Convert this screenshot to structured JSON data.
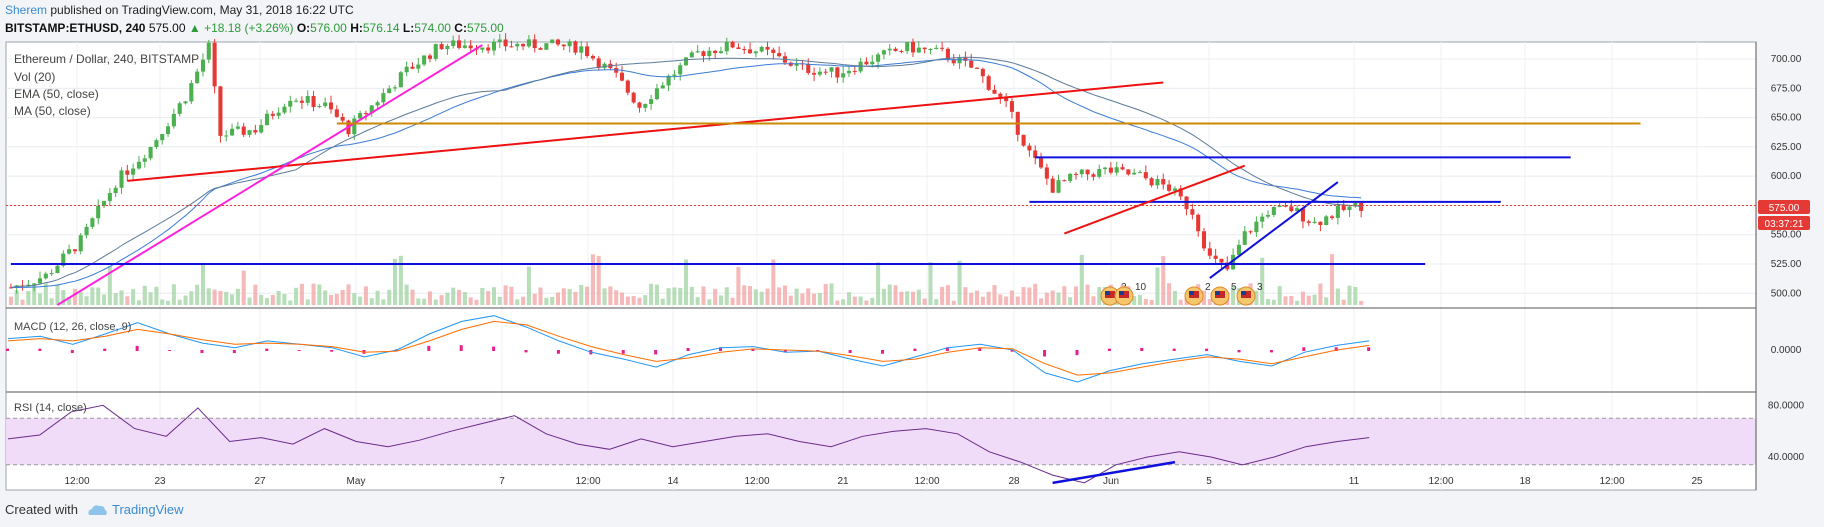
{
  "header": {
    "author": "Sherem",
    "published_text": "published on TradingView.com, May 31, 2018 16:22 UTC"
  },
  "ticker": {
    "symbol": "BITSTAMP:ETHUSD, 240",
    "last": "575.00",
    "change": "▲ +18.18 (+3.26%)",
    "open_label": "O:",
    "open": "576.00",
    "high_label": "H:",
    "high": "576.14",
    "low_label": "L:",
    "low": "574.00",
    "close_label": "C:",
    "close": "575.00"
  },
  "legend": {
    "main": "Ethereum / Dollar, 240, BITSTAMP",
    "vol": "Vol (20)",
    "ema": "EMA (50, close)",
    "ma": "MA (50, close)"
  },
  "panes": {
    "macd_label": "MACD (12, 26, close, 9)",
    "rsi_label": "RSI (14, close)"
  },
  "price_badges": {
    "price": "575.00",
    "timer": "03:37:21"
  },
  "event_markers": [
    {
      "label": "2"
    },
    {
      "label": "10"
    },
    {
      "label": "2"
    },
    {
      "label": "5"
    },
    {
      "label": "3"
    }
  ],
  "footer": {
    "created_with": "Created with",
    "brand": "TradingView"
  },
  "colors": {
    "up": "#4caf50",
    "down": "#e53935",
    "ema": "#3a7bd5",
    "ma": "#5b7a99",
    "trend_red": "#ee1111",
    "trend_magenta": "#ff22dd",
    "trend_orange": "#cc8800",
    "trend_blue": "#1010dd",
    "macd": "#2196f3",
    "signal": "#ff6d00",
    "hist": "#e91e8c",
    "rsi": "#6a2a8a",
    "rsi_band": "#f0dcf8"
  },
  "chart_data": [
    {
      "type": "candlestick",
      "title": "Ethereum / Dollar, 240, BITSTAMP",
      "y_ticks": [
        500,
        525,
        550,
        575,
        600,
        625,
        650,
        675,
        700
      ],
      "y_tick_labels": [
        "500.00",
        "525.00",
        "550.00",
        "575.00",
        "600.00",
        "625.00",
        "650.00",
        "675.00",
        "700.00"
      ],
      "ylim": [
        490,
        712
      ],
      "x_tick_labels": [
        "12:00",
        "23",
        "27",
        "May",
        "7",
        "12:00",
        "14",
        "12:00",
        "21",
        "12:00",
        "28",
        "Jun",
        "5",
        "11",
        "12:00",
        "18",
        "12:00",
        "25"
      ],
      "price_path": [
        [
          0,
          505
        ],
        [
          6,
          515
        ],
        [
          12,
          545
        ],
        [
          18,
          595
        ],
        [
          24,
          625
        ],
        [
          30,
          668
        ],
        [
          34,
          710
        ],
        [
          36,
          635
        ],
        [
          42,
          640
        ],
        [
          48,
          668
        ],
        [
          54,
          660
        ],
        [
          58,
          640
        ],
        [
          62,
          660
        ],
        [
          68,
          690
        ],
        [
          74,
          712
        ],
        [
          82,
          712
        ],
        [
          88,
          712
        ],
        [
          92,
          712
        ],
        [
          98,
          710
        ],
        [
          104,
          685
        ],
        [
          108,
          660
        ],
        [
          112,
          680
        ],
        [
          118,
          705
        ],
        [
          124,
          712
        ],
        [
          130,
          705
        ],
        [
          136,
          692
        ],
        [
          142,
          688
        ],
        [
          148,
          700
        ],
        [
          154,
          710
        ],
        [
          160,
          705
        ],
        [
          166,
          690
        ],
        [
          171,
          660
        ],
        [
          175,
          620
        ],
        [
          179,
          590
        ],
        [
          183,
          600
        ],
        [
          188,
          605
        ],
        [
          194,
          600
        ],
        [
          199,
          590
        ],
        [
          203,
          570
        ],
        [
          206,
          530
        ],
        [
          209,
          520
        ],
        [
          212,
          550
        ],
        [
          216,
          570
        ],
        [
          220,
          572
        ],
        [
          224,
          560
        ],
        [
          228,
          570
        ],
        [
          232,
          575
        ]
      ],
      "trendlines": [
        {
          "color": "red",
          "from": [
            20,
            596
          ],
          "to": [
            198,
            680
          ]
        },
        {
          "color": "magenta",
          "from": [
            8,
            490
          ],
          "to": [
            81,
            712
          ]
        },
        {
          "color": "orange",
          "from": [
            56,
            645
          ],
          "to": [
            280,
            645
          ]
        },
        {
          "color": "blue",
          "from": [
            0,
            525
          ],
          "to": [
            243,
            525
          ]
        },
        {
          "color": "blue",
          "from": [
            176,
            616
          ],
          "to": [
            268,
            616
          ]
        },
        {
          "color": "blue",
          "from": [
            175,
            578
          ],
          "to": [
            256,
            578
          ]
        },
        {
          "color": "red",
          "from": [
            181,
            551
          ],
          "to": [
            212,
            609
          ]
        },
        {
          "color": "blue",
          "from": [
            206,
            513
          ],
          "to": [
            228,
            595
          ]
        }
      ]
    },
    {
      "type": "line",
      "title": "MACD (12, 26, close, 9)",
      "y_ticks": [
        0
      ],
      "y_tick_labels": [
        "0.0000"
      ],
      "ylim": [
        -35,
        35
      ],
      "series": [
        {
          "values": [
            10,
            12,
            5,
            14,
            24,
            14,
            6,
            2,
            8,
            5,
            2,
            -6,
            0,
            14,
            25,
            30,
            20,
            8,
            -2,
            -8,
            -15,
            -4,
            2,
            3,
            -2,
            -1,
            -8,
            -14,
            -6,
            2,
            5,
            0,
            -20,
            -28,
            -18,
            -12,
            -8,
            -4,
            -10,
            -14,
            -2,
            4,
            8
          ]
        },
        {
          "values": [
            8,
            10,
            8,
            12,
            18,
            14,
            9,
            5,
            6,
            5,
            3,
            -2,
            -1,
            8,
            18,
            25,
            22,
            12,
            3,
            -4,
            -10,
            -7,
            -2,
            1,
            0,
            -1,
            -5,
            -10,
            -8,
            -2,
            2,
            1,
            -12,
            -22,
            -20,
            -15,
            -10,
            -6,
            -8,
            -12,
            -6,
            0,
            4
          ]
        }
      ]
    },
    {
      "type": "line",
      "title": "RSI (14, close)",
      "y_ticks": [
        40,
        80
      ],
      "y_tick_labels": [
        "40.0000",
        "80.0000"
      ],
      "ylim": [
        16,
        88
      ],
      "band": [
        34,
        70
      ],
      "values": [
        54,
        57,
        75,
        80,
        62,
        56,
        78,
        52,
        55,
        50,
        62,
        52,
        48,
        53,
        60,
        66,
        72,
        58,
        50,
        46,
        54,
        48,
        52,
        56,
        58,
        52,
        48,
        56,
        60,
        62,
        58,
        44,
        36,
        26,
        20,
        34,
        40,
        44,
        40,
        34,
        40,
        48,
        52,
        55
      ]
    }
  ]
}
